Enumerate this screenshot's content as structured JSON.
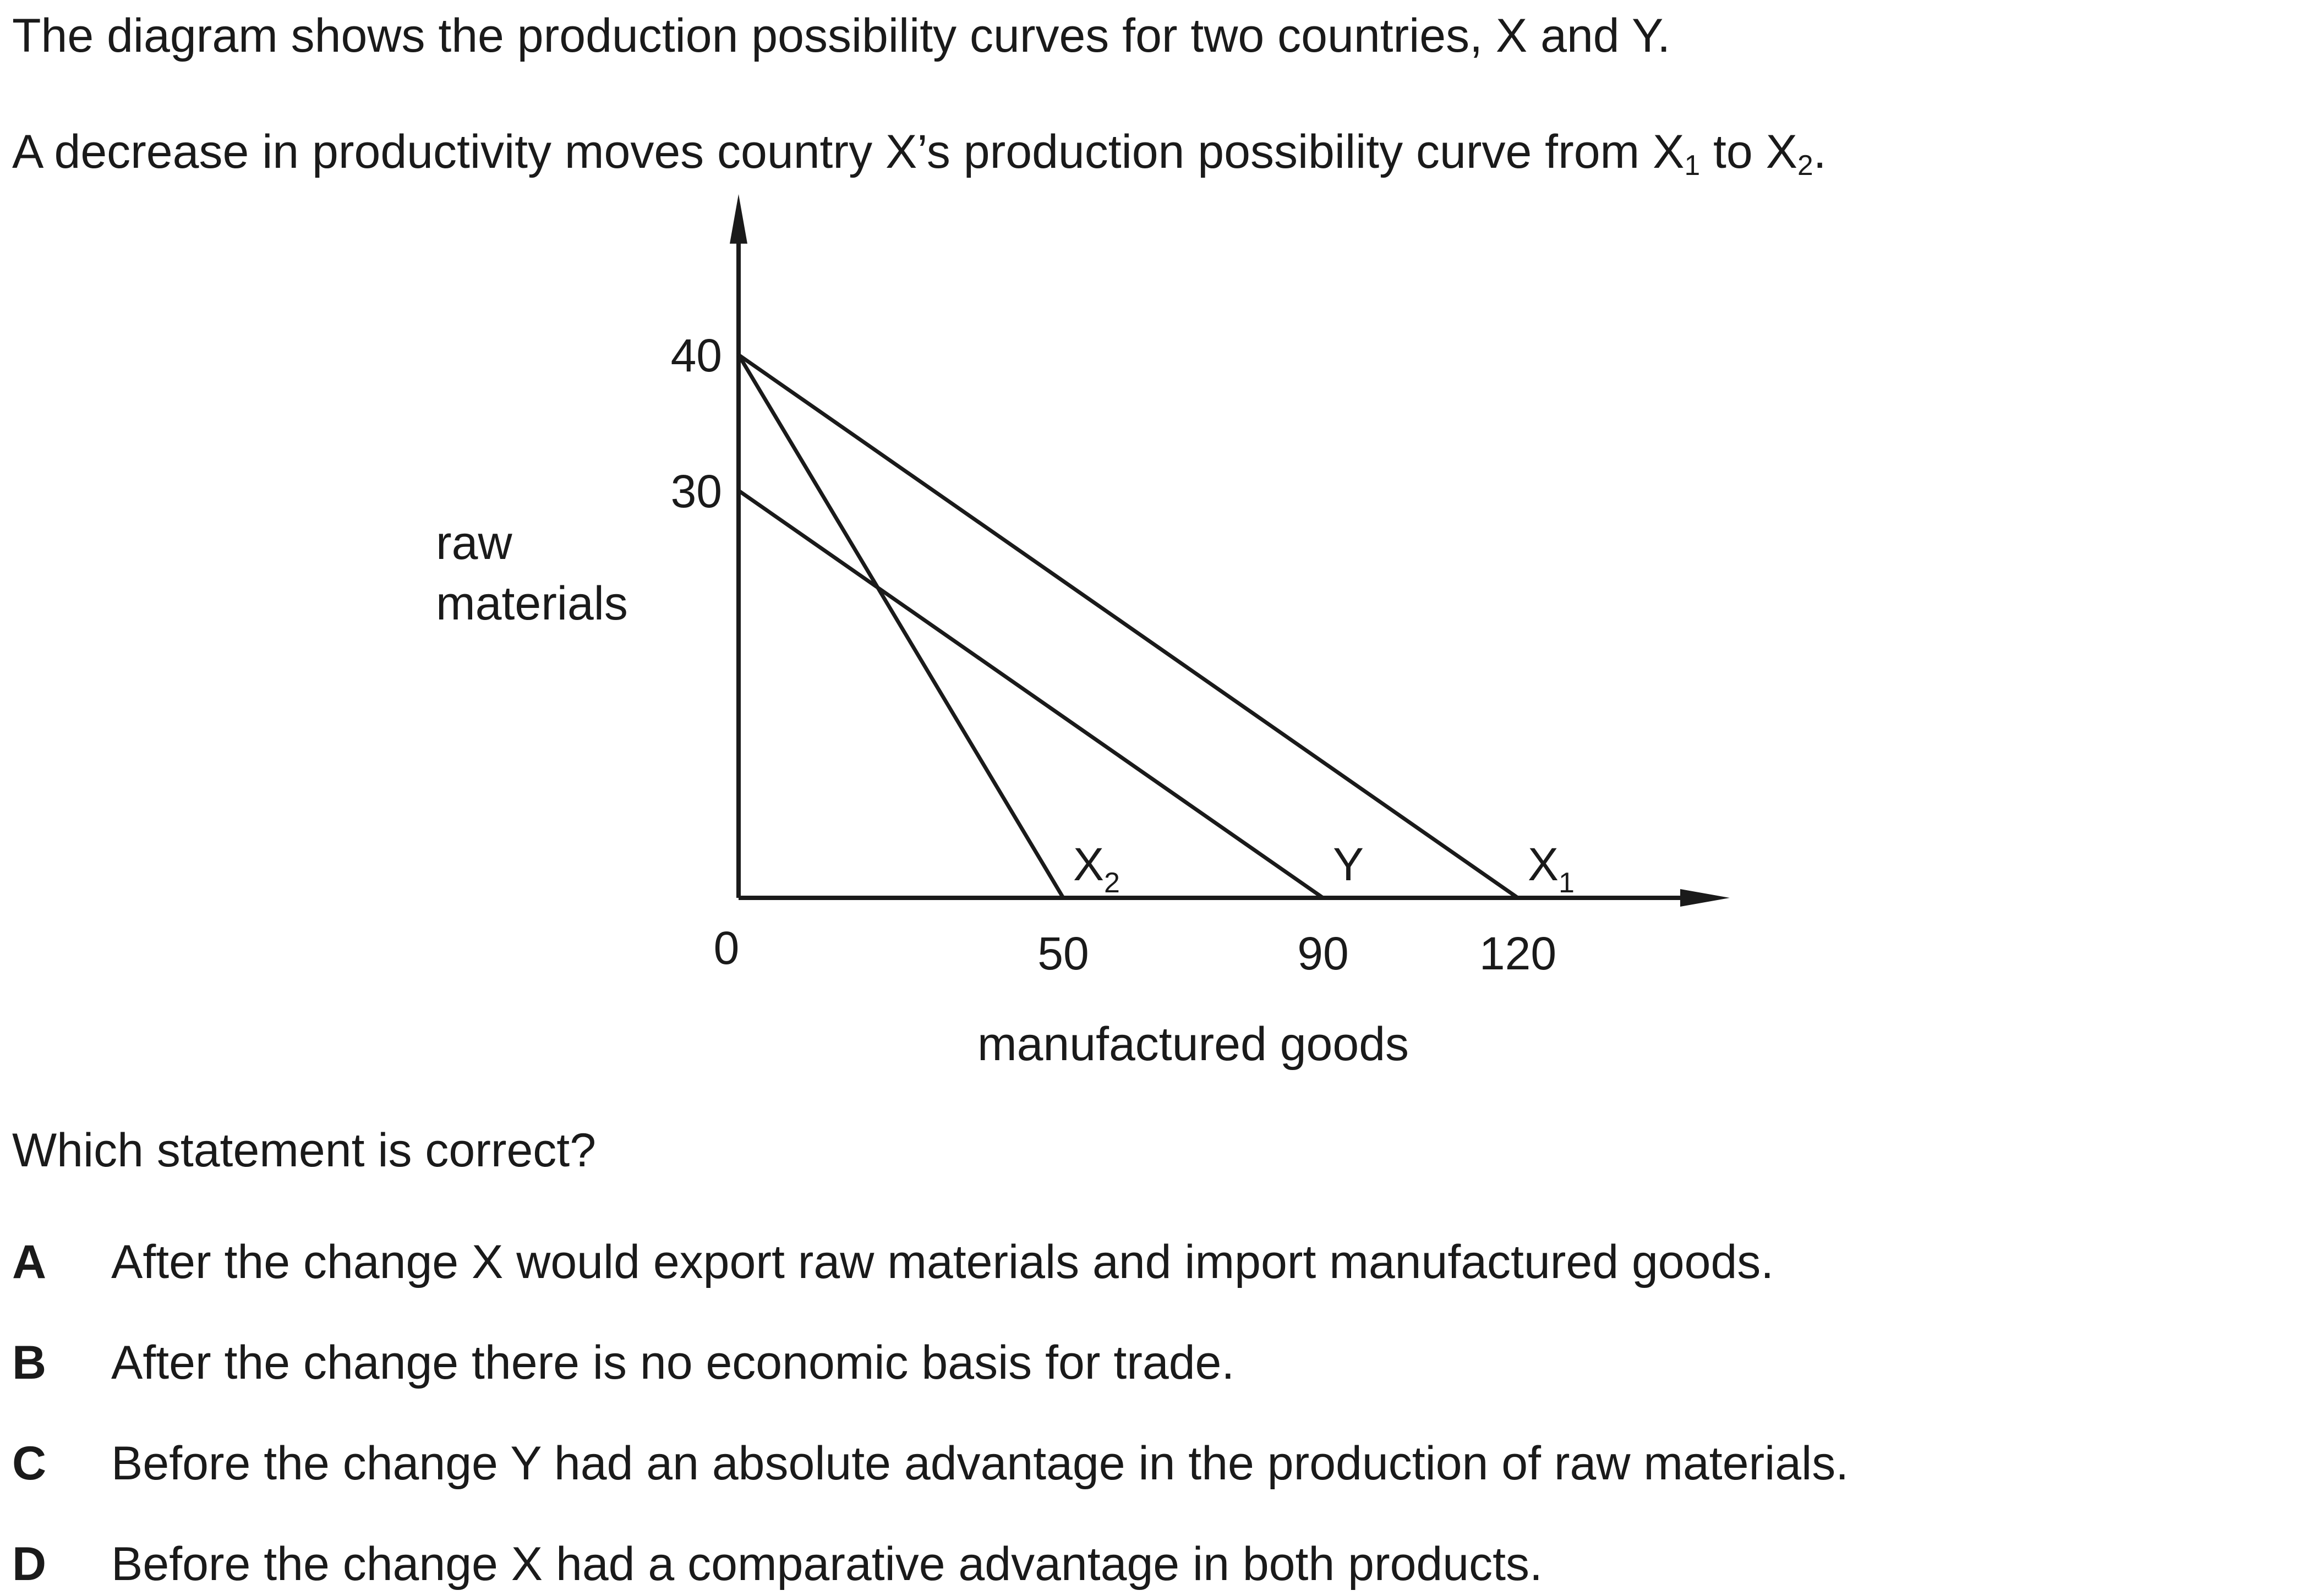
{
  "intro": {
    "line1": "The diagram shows the production possibility curves for two countries, X and Y.",
    "line2_before": "A decrease in productivity moves country X’s production possibility curve from X",
    "line2_sub1": "1",
    "line2_mid": " to X",
    "line2_sub2": "2",
    "line2_end": "."
  },
  "chart_data": {
    "type": "line",
    "xlabel": "manufactured goods",
    "ylabel": "raw materials",
    "origin_label": "0",
    "x_ticks": [
      "50",
      "90",
      "120"
    ],
    "y_ticks": [
      "40",
      "30"
    ],
    "xlim": [
      0,
      145
    ],
    "ylim": [
      0,
      49
    ],
    "series": [
      {
        "name": "X₂",
        "points": [
          [
            0,
            40
          ],
          [
            50,
            0
          ]
        ]
      },
      {
        "name": "Y",
        "points": [
          [
            0,
            30
          ],
          [
            90,
            0
          ]
        ]
      },
      {
        "name": "X₁",
        "points": [
          [
            0,
            40
          ],
          [
            120,
            0
          ]
        ]
      }
    ]
  },
  "question": "Which statement is correct?",
  "options": [
    {
      "letter": "A",
      "text": "After the change X would export raw materials and import manufactured goods."
    },
    {
      "letter": "B",
      "text": "After the change there is no economic basis for trade."
    },
    {
      "letter": "C",
      "text": "Before the change Y had an absolute advantage in the production of raw materials."
    },
    {
      "letter": "D",
      "text": "Before the change X had a comparative advantage in both products."
    }
  ],
  "colors": {
    "text": "#1a1a1a",
    "lines": "#1a1a1a",
    "background": "#ffffff"
  }
}
